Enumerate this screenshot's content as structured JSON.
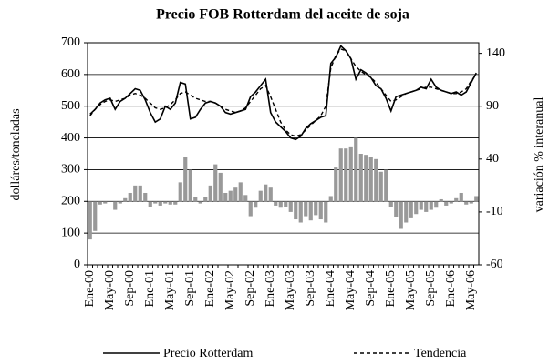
{
  "chart_data": {
    "type": "combo",
    "title": "Precio FOB Rotterdam del aceite de soja",
    "y_label": "dolláres/toneladas",
    "y2_label": "variación % interanual",
    "categories": [
      "Ene-00",
      null,
      null,
      null,
      "May-00",
      null,
      null,
      null,
      "Sep-00",
      null,
      null,
      null,
      "Ene-01",
      null,
      null,
      null,
      "May-01",
      null,
      null,
      null,
      "Sep-01",
      null,
      null,
      null,
      "Ene-02",
      null,
      null,
      null,
      "May-02",
      null,
      null,
      null,
      "Sep-02",
      null,
      null,
      null,
      "Ene-03",
      null,
      null,
      null,
      "May-03",
      null,
      null,
      null,
      "Sep-03",
      null,
      null,
      null,
      "Ene-04",
      null,
      null,
      null,
      "May-04",
      null,
      null,
      null,
      "Sep-04",
      null,
      null,
      null,
      "Ene-05",
      null,
      null,
      null,
      "May-05",
      null,
      null,
      null,
      "Sep-05",
      null,
      null,
      null,
      "Ene-06",
      null,
      null,
      null,
      "May-06",
      null
    ],
    "ylim": [
      0,
      700
    ],
    "yticks": [
      0,
      100,
      200,
      300,
      400,
      500,
      600,
      700
    ],
    "y2lim": [
      -60,
      150
    ],
    "y2ticks": [
      -60,
      -10,
      40,
      90,
      140
    ],
    "grid": true,
    "legend": "bottom",
    "series": [
      {
        "name": "Precio Rotterdam",
        "type": "line",
        "dash": "solid",
        "color": "#000000",
        "axis": "y",
        "values": [
          475,
          490,
          510,
          520,
          525,
          490,
          515,
          525,
          540,
          555,
          550,
          520,
          480,
          450,
          460,
          500,
          490,
          510,
          575,
          570,
          460,
          465,
          490,
          510,
          515,
          510,
          500,
          480,
          475,
          480,
          485,
          490,
          530,
          545,
          565,
          585,
          480,
          450,
          435,
          420,
          400,
          395,
          405,
          430,
          445,
          455,
          465,
          470,
          635,
          655,
          690,
          675,
          650,
          585,
          615,
          605,
          590,
          565,
          555,
          525,
          485,
          530,
          535,
          540,
          545,
          550,
          560,
          555,
          585,
          560,
          550,
          545,
          540,
          545,
          535,
          545,
          575,
          605
        ]
      },
      {
        "name": "Tendencia",
        "type": "line",
        "dash": "dashed",
        "color": "#000000",
        "axis": "y",
        "values": [
          470,
          490,
          505,
          515,
          520,
          515,
          520,
          525,
          535,
          540,
          535,
          525,
          510,
          495,
          490,
          495,
          505,
          520,
          540,
          545,
          535,
          525,
          520,
          515,
          515,
          510,
          500,
          490,
          485,
          480,
          485,
          495,
          515,
          535,
          555,
          565,
          530,
          490,
          450,
          425,
          410,
          405,
          410,
          425,
          440,
          455,
          470,
          500,
          620,
          660,
          680,
          675,
          650,
          625,
          610,
          600,
          590,
          575,
          555,
          535,
          515,
          520,
          530,
          540,
          545,
          550,
          555,
          560,
          560,
          555,
          550,
          545,
          540,
          540,
          545,
          555,
          580,
          600
        ]
      },
      {
        "type": "bar",
        "color": "#999999",
        "axis": "y2",
        "values": [
          -36,
          -28,
          -3,
          -2,
          0,
          -8,
          -2,
          3,
          8,
          15,
          15,
          8,
          -5,
          -2,
          -4,
          -2,
          -3,
          -3,
          18,
          42,
          30,
          4,
          -2,
          4,
          15,
          35,
          27,
          8,
          10,
          13,
          18,
          6,
          -14,
          -6,
          10,
          16,
          13,
          -4,
          -6,
          -5,
          -10,
          -17,
          -20,
          -14,
          -18,
          -13,
          -17,
          -20,
          5,
          32,
          50,
          50,
          52,
          60,
          45,
          44,
          42,
          40,
          28,
          30,
          -5,
          -15,
          -26,
          -20,
          -16,
          -12,
          -8,
          -10,
          -8,
          -6,
          2,
          -4,
          -2,
          3,
          8,
          -3,
          -2,
          5
        ]
      }
    ]
  }
}
